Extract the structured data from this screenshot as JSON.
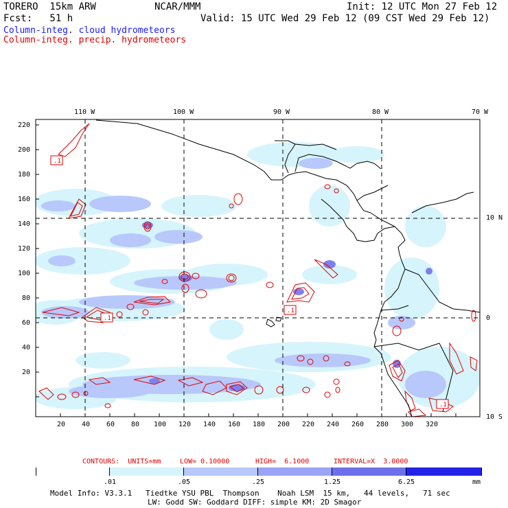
{
  "header": {
    "model": "TORERO  15km ARW",
    "org": "NCAR/MMM",
    "init": "Init: 12 UTC Mon 27 Feb 12",
    "fcst": "Fcst:   51 h",
    "valid": "Valid: 15 UTC Wed 29 Feb 12 (09 CST Wed 29 Feb 12)",
    "field1": "Column-integ. cloud hydrometeors",
    "field2": "Column-integ. precip. hydrometeors"
  },
  "colors": {
    "field1": "#1a1aff",
    "field2": "#e00000",
    "shade_levels": [
      "#ffffff",
      "#d6f4fb",
      "#b8c8fb",
      "#9aa3f5",
      "#6e70ea",
      "#4a4ae8",
      "#2323e6"
    ]
  },
  "map": {
    "lon_labels": [
      "110 W",
      "100 W",
      "90 W",
      "80 W",
      "70 W"
    ],
    "lat_labels": [
      "10 N",
      "0",
      "10 S"
    ],
    "x_ticks": [
      "20",
      "40",
      "60",
      "80",
      "100",
      "120",
      "140",
      "160",
      "180",
      "200",
      "220",
      "240",
      "260",
      "280",
      "300",
      "320"
    ],
    "y_ticks": [
      "220",
      "200",
      "180",
      "160",
      "140",
      "120",
      "100",
      "80",
      "60",
      "40",
      "20"
    ],
    "low_markers": [
      ".1",
      ".1",
      ".1",
      ".1"
    ]
  },
  "contours": {
    "units": "CONTOURS:  UNITS=mm",
    "low": "LOW= 0.10000",
    "high": "HIGH=  6.1000",
    "interval": "INTERVAL=X  3.0000"
  },
  "colorbar": {
    "labels": [
      ".01",
      ".05",
      ".25",
      "1.25",
      "6.25"
    ],
    "unit": "mm"
  },
  "footer": {
    "line1": "Model Info: V3.3.1   Tiedtke YSU PBL  Thompson    Noah LSM  15 km,   44 levels,   71 sec",
    "line2": "LW: Godd SW: Goddard DIFF: simple KM: 2D Smagor"
  }
}
